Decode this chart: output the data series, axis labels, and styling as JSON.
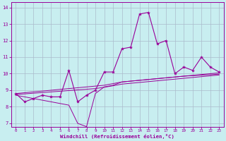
{
  "xlabel": "Windchill (Refroidissement éolien,°C)",
  "bg_color": "#c8eef0",
  "line_color": "#990099",
  "grid_color": "#aabbcc",
  "x_data": [
    0,
    1,
    2,
    3,
    4,
    5,
    6,
    7,
    8,
    9,
    10,
    11,
    12,
    13,
    14,
    15,
    16,
    17,
    18,
    19,
    20,
    21,
    22,
    23
  ],
  "y_main": [
    8.8,
    8.3,
    8.5,
    8.7,
    8.6,
    8.6,
    10.2,
    8.3,
    8.7,
    9.0,
    10.1,
    10.1,
    11.5,
    11.6,
    13.6,
    13.7,
    11.8,
    12.0,
    10.0,
    10.4,
    10.2,
    11.0,
    10.4,
    10.1
  ],
  "y_upper": [
    8.8,
    8.85,
    8.9,
    8.95,
    9.0,
    9.05,
    9.1,
    9.15,
    9.2,
    9.25,
    9.3,
    9.4,
    9.5,
    9.55,
    9.6,
    9.65,
    9.7,
    9.75,
    9.8,
    9.85,
    9.9,
    9.95,
    10.0,
    10.05
  ],
  "y_mid": [
    8.75,
    8.78,
    8.82,
    8.86,
    8.9,
    8.94,
    8.98,
    9.02,
    9.06,
    9.1,
    9.18,
    9.27,
    9.37,
    9.42,
    9.47,
    9.52,
    9.57,
    9.62,
    9.67,
    9.72,
    9.77,
    9.82,
    9.87,
    9.92
  ],
  "y_lower": [
    8.7,
    8.6,
    8.5,
    8.4,
    8.3,
    8.2,
    8.1,
    7.0,
    6.8,
    8.8,
    9.2,
    9.3,
    9.5,
    9.55,
    9.6,
    9.65,
    9.7,
    9.75,
    9.8,
    9.85,
    9.88,
    9.91,
    9.94,
    9.97
  ],
  "xlim": [
    -0.5,
    23.5
  ],
  "ylim": [
    6.8,
    14.3
  ],
  "yticks": [
    7,
    8,
    9,
    10,
    11,
    12,
    13,
    14
  ],
  "xticks": [
    0,
    1,
    2,
    3,
    4,
    5,
    6,
    7,
    8,
    9,
    10,
    11,
    12,
    13,
    14,
    15,
    16,
    17,
    18,
    19,
    20,
    21,
    22,
    23
  ]
}
